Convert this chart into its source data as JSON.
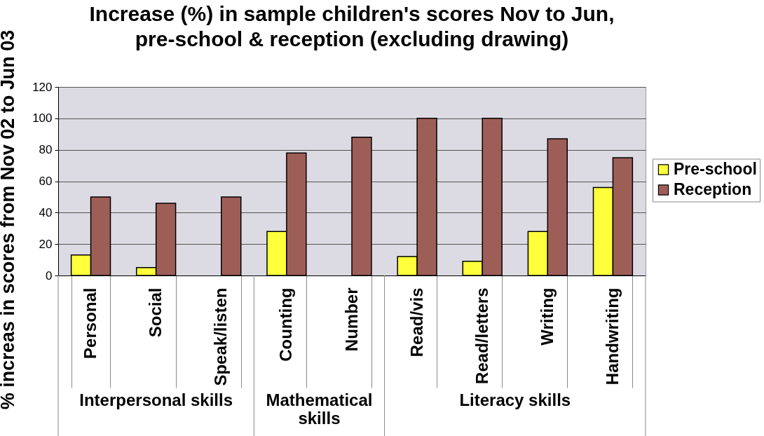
{
  "chart_data": {
    "type": "bar",
    "title": "Increase (%) in sample children's scores Nov to Jun, pre-school & reception (excluding drawing)",
    "ylabel": "% increas in scores from Nov 02 to Jun 03",
    "categories": [
      "Personal",
      "Social",
      "Speak/listen",
      "Counting",
      "Number",
      "Read/vis",
      "Read/letters",
      "Writing",
      "Handwriting"
    ],
    "series": [
      {
        "name": "Pre-school",
        "color": "#ffff3c",
        "values": [
          13,
          5,
          0,
          28,
          0,
          12,
          9,
          28,
          56
        ]
      },
      {
        "name": "Reception",
        "color": "#9e5e58",
        "values": [
          50,
          46,
          50,
          78,
          88,
          100,
          100,
          87,
          75
        ]
      }
    ],
    "ylim": [
      0,
      120
    ],
    "yticks": [
      0,
      20,
      40,
      60,
      80,
      100,
      120
    ],
    "grid": "y",
    "legend": "right",
    "annotations": [
      "Interpersonal skills",
      "Mathematical skills",
      "Literacy skills"
    ]
  }
}
